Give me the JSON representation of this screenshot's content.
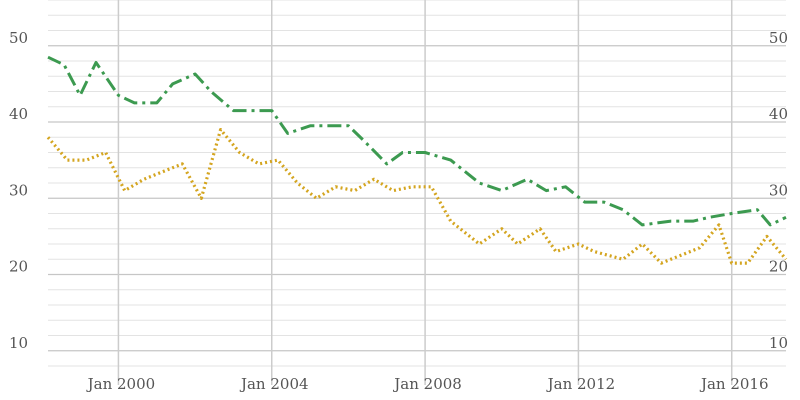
{
  "chart_data": {
    "type": "line",
    "title": "",
    "xlabel": "",
    "ylabel": "",
    "ylim": [
      8,
      56
    ],
    "xlim": [
      "1998-03-01",
      "2017-06-01"
    ],
    "grid": true,
    "y_ticks": [
      10,
      20,
      30,
      40,
      50
    ],
    "y_tick_labels_left": [
      "10",
      "20",
      "30",
      "40",
      "50"
    ],
    "y_tick_labels_right": [
      "10",
      "20",
      "30",
      "40",
      "50"
    ],
    "x_ticks": [
      "2000-01-01",
      "2004-01-01",
      "2008-01-01",
      "2012-01-01",
      "2016-01-01"
    ],
    "x_tick_labels": [
      "Jan 2000",
      "Jan 2004",
      "Jan 2008",
      "Jan 2012",
      "Jan 2016"
    ],
    "series": [
      {
        "name": "",
        "color": "#3c9a50",
        "dash": "dash-dot",
        "points": [
          [
            "1998-03-01",
            48.5
          ],
          [
            "1998-08-01",
            47.5
          ],
          [
            "1999-01-01",
            43.5
          ],
          [
            "1999-06-01",
            47.8
          ],
          [
            "2000-01-01",
            43.5
          ],
          [
            "2000-06-01",
            42.5
          ],
          [
            "2001-01-01",
            42.5
          ],
          [
            "2001-06-01",
            45.0
          ],
          [
            "2002-01-01",
            46.3
          ],
          [
            "2002-06-01",
            44.0
          ],
          [
            "2003-01-01",
            41.5
          ],
          [
            "2003-06-01",
            41.5
          ],
          [
            "2004-01-01",
            41.5
          ],
          [
            "2004-06-01",
            38.5
          ],
          [
            "2005-01-01",
            39.5
          ],
          [
            "2005-06-01",
            39.5
          ],
          [
            "2006-01-01",
            39.5
          ],
          [
            "2006-06-01",
            37.5
          ],
          [
            "2007-01-01",
            34.5
          ],
          [
            "2007-06-01",
            36.0
          ],
          [
            "2008-01-01",
            36.0
          ],
          [
            "2008-09-01",
            35.0
          ],
          [
            "2009-06-01",
            32.0
          ],
          [
            "2010-01-01",
            31.0
          ],
          [
            "2010-09-01",
            32.5
          ],
          [
            "2011-03-01",
            31.0
          ],
          [
            "2011-09-01",
            31.5
          ],
          [
            "2012-03-01",
            29.5
          ],
          [
            "2012-09-01",
            29.5
          ],
          [
            "2013-03-01",
            28.5
          ],
          [
            "2013-09-01",
            26.5
          ],
          [
            "2014-06-01",
            27.0
          ],
          [
            "2015-01-01",
            27.0
          ],
          [
            "2015-06-01",
            27.5
          ],
          [
            "2016-01-01",
            28.0
          ],
          [
            "2016-09-01",
            28.5
          ],
          [
            "2017-01-01",
            26.5
          ],
          [
            "2017-06-01",
            27.5
          ]
        ]
      },
      {
        "name": "",
        "color": "#d4a520",
        "dash": "dotted",
        "points": [
          [
            "1998-03-01",
            38.0
          ],
          [
            "1998-09-01",
            35.0
          ],
          [
            "1999-03-01",
            35.0
          ],
          [
            "1999-09-01",
            36.0
          ],
          [
            "2000-03-01",
            31.0
          ],
          [
            "2000-09-01",
            32.5
          ],
          [
            "2001-03-01",
            33.5
          ],
          [
            "2001-09-01",
            34.5
          ],
          [
            "2002-03-01",
            30.0
          ],
          [
            "2002-09-01",
            39.0
          ],
          [
            "2003-03-01",
            36.0
          ],
          [
            "2003-09-01",
            34.5
          ],
          [
            "2004-03-01",
            35.0
          ],
          [
            "2004-09-01",
            32.0
          ],
          [
            "2005-03-01",
            30.0
          ],
          [
            "2005-09-01",
            31.5
          ],
          [
            "2006-03-01",
            31.0
          ],
          [
            "2006-09-01",
            32.5
          ],
          [
            "2007-03-01",
            31.0
          ],
          [
            "2007-09-01",
            31.5
          ],
          [
            "2008-03-01",
            31.5
          ],
          [
            "2008-09-01",
            27.0
          ],
          [
            "2009-06-01",
            24.0
          ],
          [
            "2010-01-01",
            26.0
          ],
          [
            "2010-06-01",
            24.0
          ],
          [
            "2011-01-01",
            26.0
          ],
          [
            "2011-06-01",
            23.0
          ],
          [
            "2012-01-01",
            24.0
          ],
          [
            "2012-06-01",
            23.0
          ],
          [
            "2013-03-01",
            22.0
          ],
          [
            "2013-09-01",
            24.0
          ],
          [
            "2014-03-01",
            21.5
          ],
          [
            "2014-09-01",
            22.5
          ],
          [
            "2015-03-01",
            23.5
          ],
          [
            "2015-09-01",
            26.5
          ],
          [
            "2016-01-01",
            21.5
          ],
          [
            "2016-06-01",
            21.5
          ],
          [
            "2016-12-01",
            25.0
          ],
          [
            "2017-06-01",
            22.0
          ]
        ]
      }
    ]
  }
}
